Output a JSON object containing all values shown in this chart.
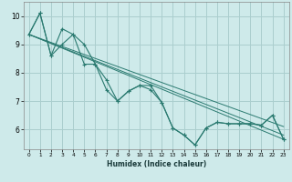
{
  "xlabel": "Humidex (Indice chaleur)",
  "bg_color": "#ceeaea",
  "grid_color": "#aacece",
  "line_color": "#2a7a70",
  "xlim": [
    -0.5,
    23.5
  ],
  "ylim": [
    5.3,
    10.5
  ],
  "yticks": [
    6,
    7,
    8,
    9,
    10
  ],
  "xticks": [
    0,
    1,
    2,
    3,
    4,
    5,
    6,
    7,
    8,
    9,
    10,
    11,
    12,
    13,
    14,
    15,
    16,
    17,
    18,
    19,
    20,
    21,
    22,
    23
  ],
  "series1_x": [
    0,
    1,
    2,
    3,
    4,
    5,
    6,
    7,
    8,
    9,
    10,
    11,
    12,
    13,
    14,
    15,
    16,
    17,
    18,
    19,
    20,
    21,
    22,
    23
  ],
  "series1_y": [
    9.35,
    10.1,
    8.6,
    9.55,
    9.35,
    9.0,
    8.3,
    7.75,
    7.0,
    7.35,
    7.55,
    7.55,
    6.95,
    6.05,
    5.8,
    5.45,
    6.05,
    6.25,
    6.2,
    6.2,
    6.2,
    6.15,
    6.5,
    5.65
  ],
  "series2_x": [
    0,
    1,
    2,
    3,
    4,
    5,
    6,
    7,
    8,
    9,
    10,
    11,
    12,
    13,
    14,
    15,
    16,
    17,
    18,
    19,
    20,
    21,
    22,
    23
  ],
  "series2_y": [
    9.35,
    10.1,
    8.6,
    9.0,
    9.35,
    8.3,
    8.3,
    7.4,
    7.0,
    7.35,
    7.55,
    7.4,
    6.95,
    6.05,
    5.8,
    5.45,
    6.05,
    6.25,
    6.2,
    6.2,
    6.2,
    6.15,
    6.5,
    5.65
  ],
  "trend1_x": [
    0,
    23
  ],
  "trend1_y": [
    9.35,
    5.65
  ],
  "trend2_x": [
    0,
    23
  ],
  "trend2_y": [
    9.35,
    5.8
  ],
  "trend3_x": [
    0,
    23
  ],
  "trend3_y": [
    9.35,
    6.1
  ]
}
